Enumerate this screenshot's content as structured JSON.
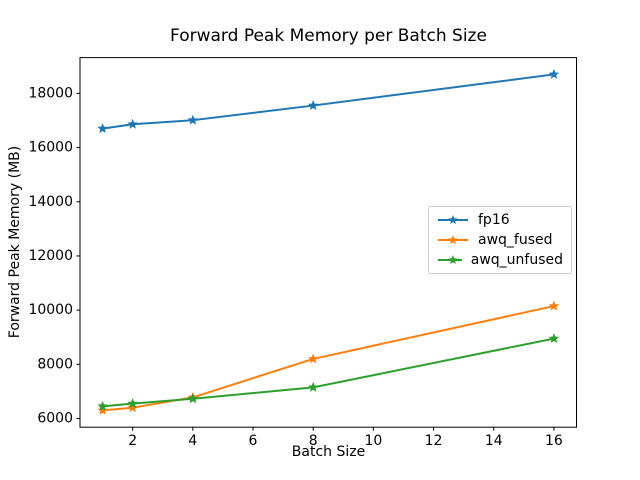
{
  "figure": {
    "background": "#ffffff",
    "text_color": "#000000",
    "spine_color": "#000000",
    "legend_border_color": "#cccccc"
  },
  "chart_data": {
    "type": "line",
    "title": "Forward Peak Memory per Batch Size",
    "xlabel": "Batch Size",
    "ylabel": "Forward Peak Memory (MB)",
    "x": [
      1,
      2,
      4,
      8,
      16
    ],
    "series": [
      {
        "name": "fp16",
        "color": "#1f77b4",
        "values": [
          16700,
          16860,
          17010,
          17550,
          18700
        ]
      },
      {
        "name": "awq_fused",
        "color": "#ff7f0e",
        "values": [
          6300,
          6400,
          6780,
          8200,
          10150
        ]
      },
      {
        "name": "awq_unfused",
        "color": "#2ca02c",
        "values": [
          6450,
          6550,
          6730,
          7150,
          8950
        ]
      }
    ],
    "marker": "star",
    "xticks": [
      2,
      4,
      6,
      8,
      10,
      12,
      14,
      16
    ],
    "yticks": [
      6000,
      8000,
      10000,
      12000,
      14000,
      16000,
      18000
    ],
    "xlim": [
      0.25,
      16.75
    ],
    "ylim": [
      5680,
      19320
    ],
    "grid": false,
    "legend_position": "center-right"
  }
}
